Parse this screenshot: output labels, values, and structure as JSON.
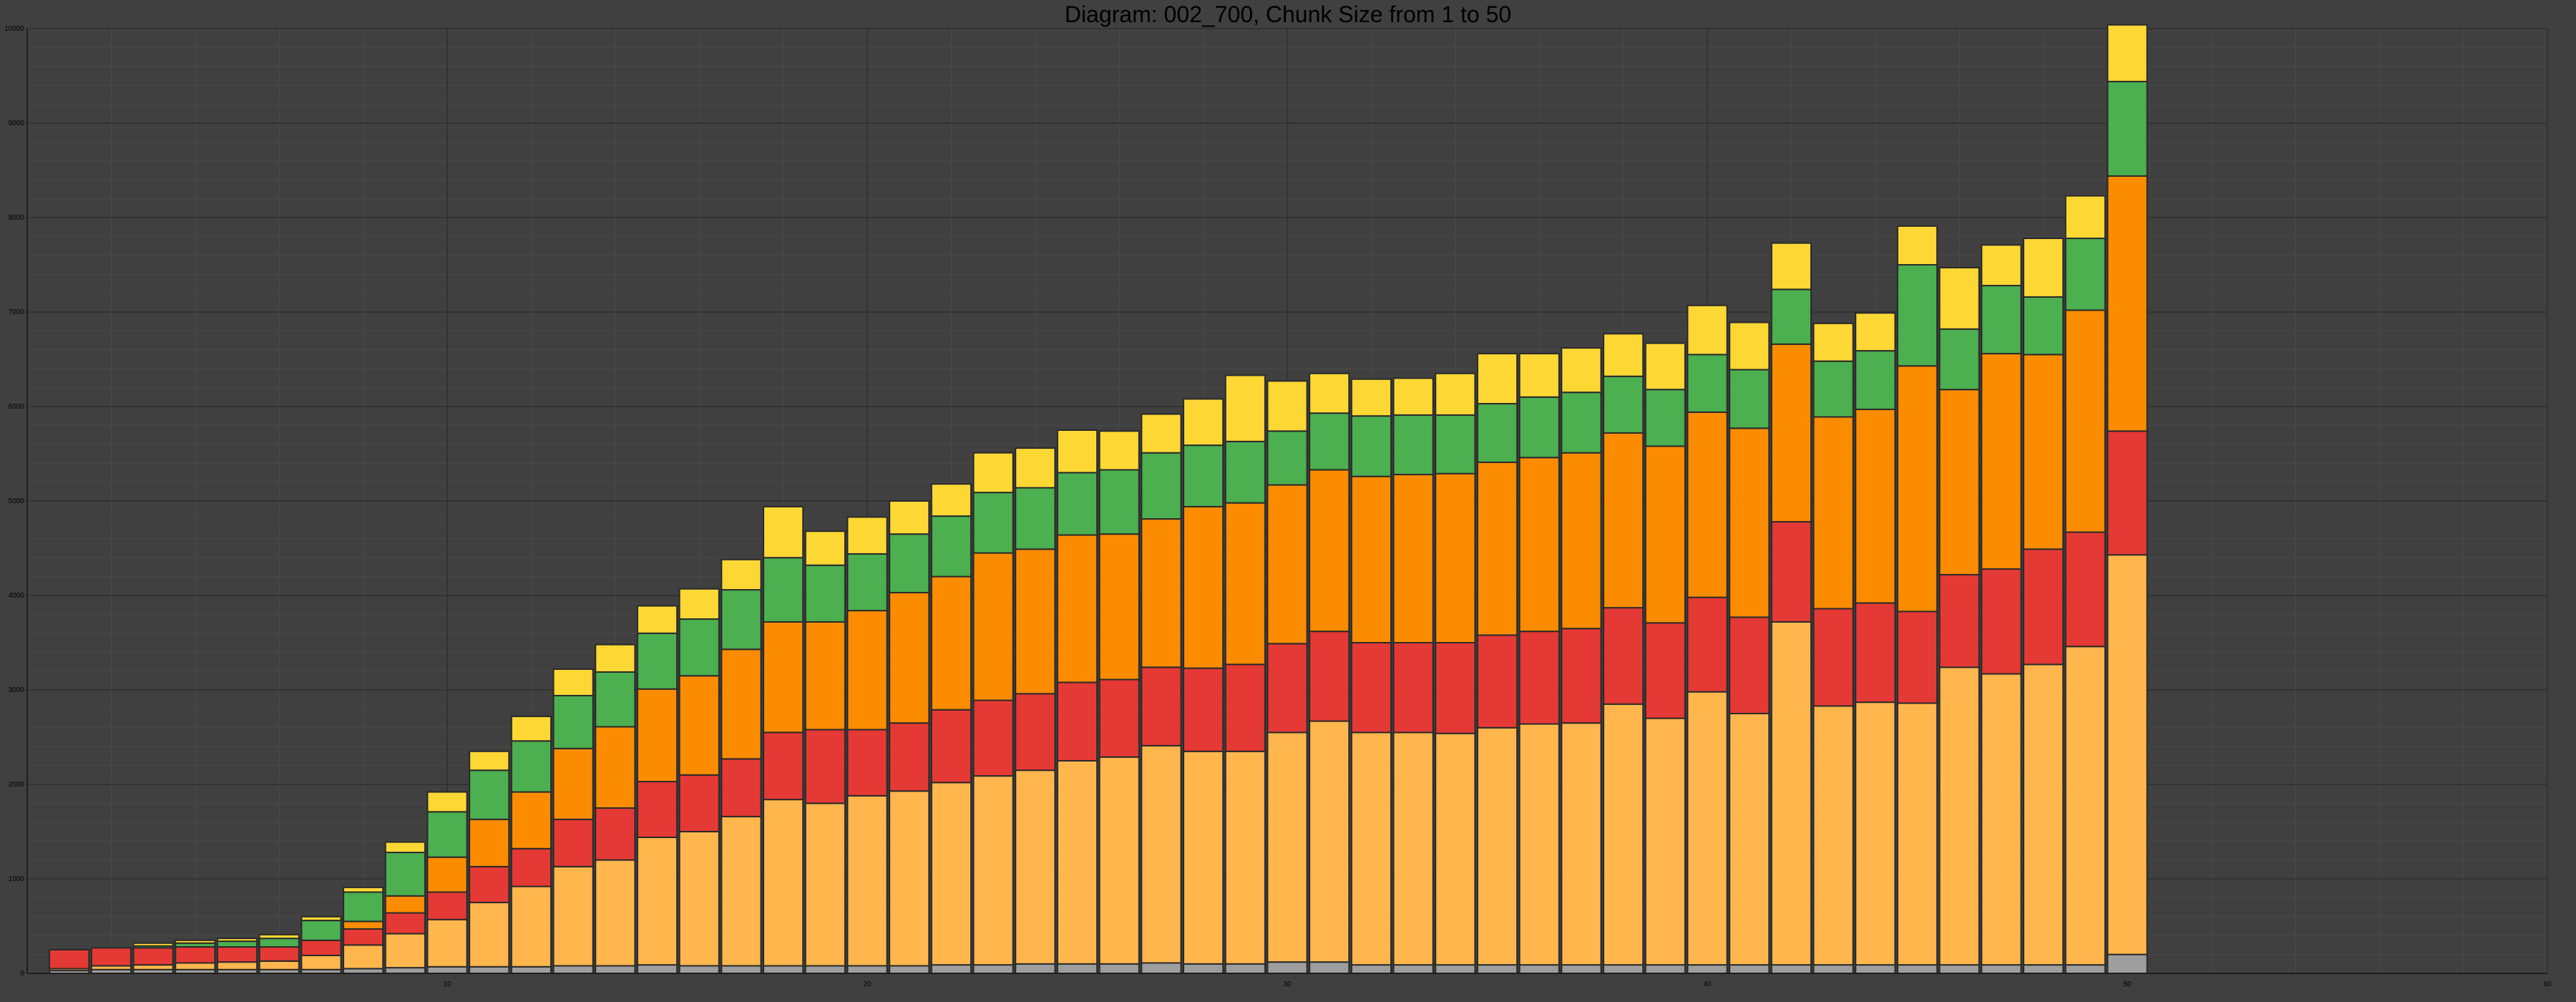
{
  "chart_data": {
    "type": "bar",
    "stacked": true,
    "title": "Diagram: 002_700, Chunk Size from 1 to 50",
    "xlabel": "",
    "ylabel": "",
    "xlim": [
      0,
      60
    ],
    "ylim": [
      0,
      10000
    ],
    "x_ticks": [
      10,
      20,
      30,
      40,
      50,
      60
    ],
    "y_ticks": [
      0,
      1000,
      2000,
      3000,
      4000,
      5000,
      6000,
      7000,
      8000,
      9000,
      10000
    ],
    "grid": true,
    "background": "#404040",
    "categories": [
      1,
      2,
      3,
      4,
      5,
      6,
      7,
      8,
      9,
      10,
      11,
      12,
      13,
      14,
      15,
      16,
      17,
      18,
      19,
      20,
      21,
      22,
      23,
      24,
      25,
      26,
      27,
      28,
      29,
      30,
      31,
      32,
      33,
      34,
      35,
      36,
      37,
      38,
      39,
      40,
      41,
      42,
      43,
      44,
      45,
      46,
      47,
      48,
      49,
      50
    ],
    "series": [
      {
        "color": "#9e9e9e",
        "values": [
          30,
          40,
          40,
          40,
          40,
          40,
          40,
          50,
          60,
          70,
          70,
          70,
          80,
          80,
          90,
          80,
          80,
          80,
          80,
          80,
          80,
          90,
          90,
          100,
          100,
          100,
          110,
          100,
          100,
          120,
          120,
          90,
          90,
          90,
          90,
          90,
          90,
          90,
          90,
          90,
          90,
          90,
          90,
          90,
          90,
          90,
          90,
          90,
          90,
          200
        ]
      },
      {
        "color": "#ffb74d",
        "values": [
          20,
          40,
          50,
          70,
          80,
          90,
          150,
          250,
          360,
          500,
          680,
          850,
          1050,
          1120,
          1350,
          1420,
          1580,
          1760,
          1720,
          1800,
          1850,
          1930,
          2000,
          2050,
          2150,
          2190,
          2300,
          2250,
          2250,
          2430,
          2550,
          2460,
          2460,
          2450,
          2510,
          2550,
          2560,
          2760,
          2610,
          2890,
          2660,
          3630,
          2740,
          2780,
          2770,
          3150,
          3080,
          3180,
          3370,
          4230
        ]
      },
      {
        "color": "#e53935",
        "values": [
          200,
          190,
          180,
          170,
          160,
          150,
          160,
          170,
          220,
          290,
          380,
          400,
          500,
          550,
          590,
          600,
          610,
          710,
          780,
          700,
          720,
          770,
          800,
          810,
          830,
          820,
          830,
          880,
          920,
          940,
          950,
          950,
          950,
          960,
          980,
          980,
          1000,
          1020,
          1010,
          1000,
          1020,
          1060,
          1030,
          1050,
          970,
          980,
          1110,
          1220,
          1210,
          1310
        ]
      },
      {
        "color": "#fb8c00",
        "values": [
          0,
          0,
          0,
          0,
          0,
          0,
          0,
          80,
          180,
          370,
          500,
          600,
          750,
          860,
          980,
          1050,
          1160,
          1170,
          1140,
          1260,
          1380,
          1410,
          1560,
          1530,
          1560,
          1540,
          1570,
          1710,
          1710,
          1680,
          1710,
          1760,
          1780,
          1790,
          1830,
          1840,
          1860,
          1850,
          1870,
          1960,
          2000,
          1880,
          2030,
          2050,
          2600,
          1960,
          2280,
          2060,
          2350,
          2700
        ]
      },
      {
        "color": "#4caf50",
        "values": [
          0,
          0,
          20,
          40,
          60,
          90,
          210,
          310,
          460,
          480,
          520,
          540,
          560,
          580,
          590,
          600,
          630,
          680,
          600,
          600,
          620,
          640,
          640,
          650,
          660,
          680,
          700,
          650,
          650,
          570,
          600,
          640,
          630,
          620,
          620,
          640,
          640,
          600,
          600,
          610,
          620,
          580,
          590,
          620,
          1070,
          640,
          720,
          610,
          760,
          1000
        ]
      },
      {
        "color": "#fdd835",
        "values": [
          0,
          0,
          30,
          30,
          30,
          40,
          40,
          50,
          110,
          210,
          200,
          260,
          280,
          290,
          290,
          320,
          320,
          540,
          360,
          390,
          350,
          340,
          420,
          420,
          450,
          410,
          410,
          490,
          700,
          530,
          420,
          390,
          390,
          440,
          530,
          460,
          470,
          450,
          490,
          520,
          500,
          490,
          400,
          400,
          410,
          650,
          430,
          620,
          450,
          600
        ]
      }
    ]
  }
}
